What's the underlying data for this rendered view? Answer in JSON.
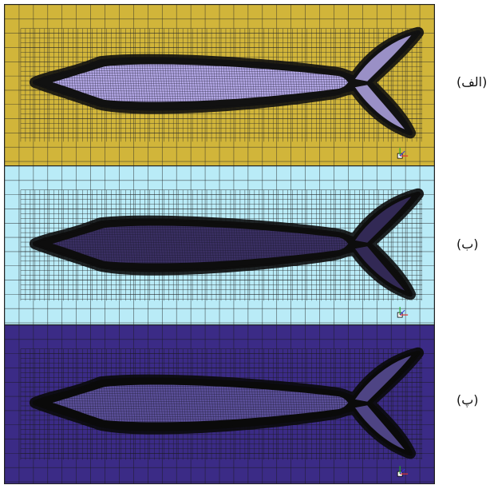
{
  "figure": {
    "panels": [
      {
        "label": "(الف)",
        "bg": "#d1b53a",
        "body": "#b3a7e6",
        "grid": "#2a2a2a",
        "mesh": "#111111",
        "axis": "x"
      },
      {
        "label": "(ب)",
        "bg": "#b9ebf7",
        "body": "#3a2f63",
        "grid": "#1f1f1f",
        "mesh": "#0d0d0d",
        "axis": "y"
      },
      {
        "label": "(پ)",
        "bg": "#3b2b86",
        "body": "#5b4f9a",
        "grid": "#1b1b1b",
        "mesh": "#0a0a0a",
        "axis": "z"
      }
    ]
  }
}
